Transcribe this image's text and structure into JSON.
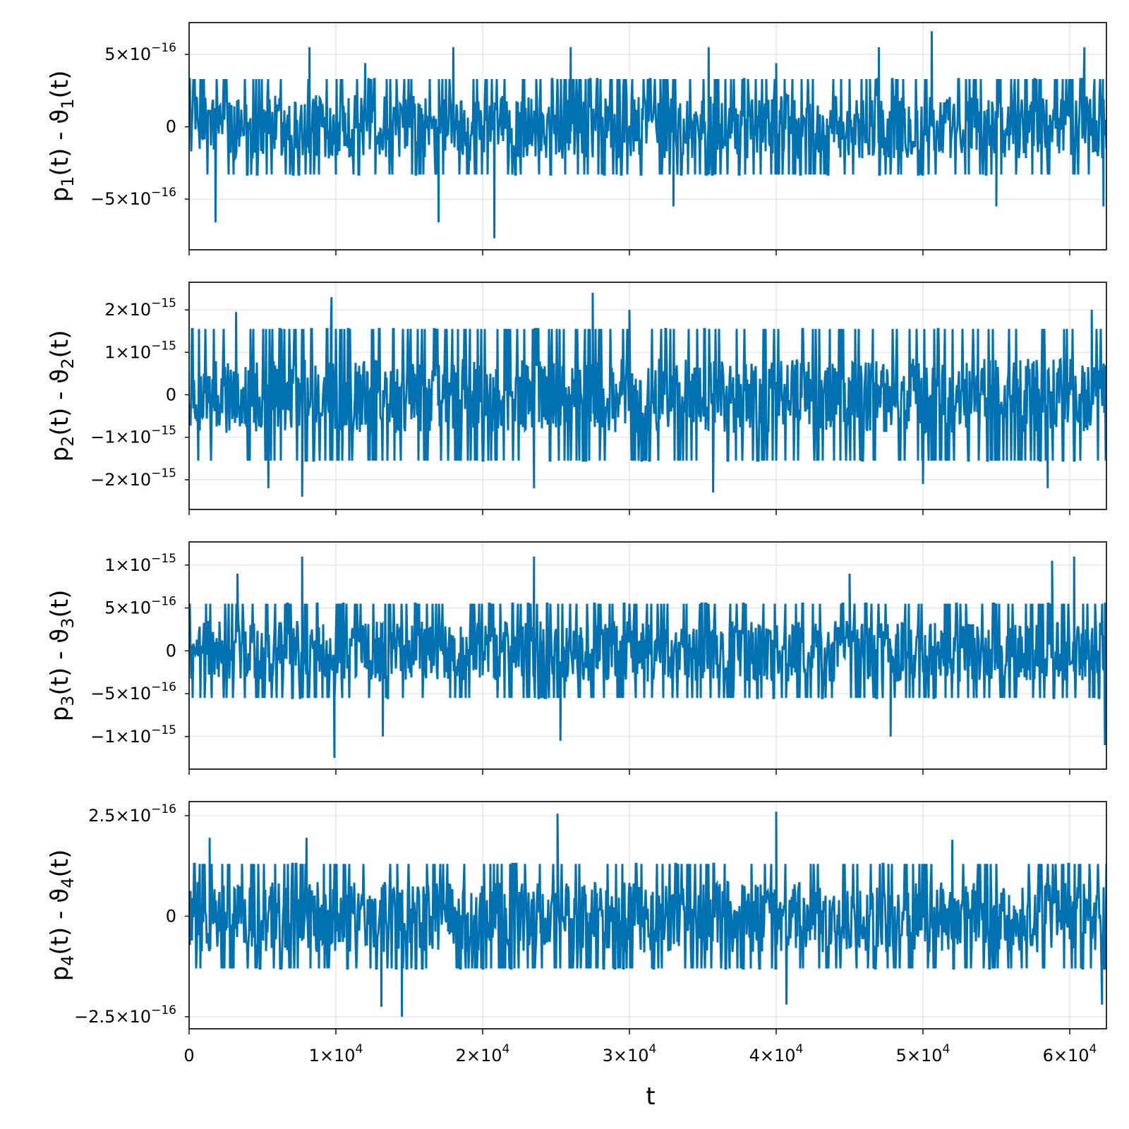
{
  "chart_data": {
    "type": "line",
    "shared_x": {
      "label": "t",
      "range": [
        0,
        62500
      ],
      "ticks": [
        {
          "value": 0,
          "mant": "0",
          "exp": ""
        },
        {
          "value": 10000,
          "mant": "1×10",
          "exp": "4"
        },
        {
          "value": 20000,
          "mant": "2×10",
          "exp": "4"
        },
        {
          "value": 30000,
          "mant": "3×10",
          "exp": "4"
        },
        {
          "value": 40000,
          "mant": "4×10",
          "exp": "4"
        },
        {
          "value": 50000,
          "mant": "5×10",
          "exp": "4"
        },
        {
          "value": 60000,
          "mant": "6×10",
          "exp": "4"
        }
      ]
    },
    "grid": true,
    "line_color": "#0072b2",
    "panels": [
      {
        "ylabel": {
          "p": "p",
          "sub1": "1",
          "mid": "(t) - ϑ",
          "sub2": "1",
          "end": "(t)"
        },
        "ylim": [
          -8.5e-16,
          7.2e-16
        ],
        "ticks": [
          {
            "value": 5e-16,
            "mant": "5×10",
            "exp": "−16"
          },
          {
            "value": 0,
            "mant": "0",
            "exp": ""
          },
          {
            "value": -5e-16,
            "mant": "−5×10",
            "exp": "−16"
          }
        ],
        "series": {
          "envelope": [
            3.3e-16,
            -3.3e-16
          ],
          "core": [
            2.2e-16,
            -2.2e-16
          ],
          "spikes": [
            {
              "t": 1800,
              "v": -6.6e-16
            },
            {
              "t": 8200,
              "v": 5.5e-16
            },
            {
              "t": 17000,
              "v": -6.6e-16
            },
            {
              "t": 18000,
              "v": 5.5e-16
            },
            {
              "t": 20800,
              "v": -7.7e-16
            },
            {
              "t": 26000,
              "v": 5.5e-16
            },
            {
              "t": 33000,
              "v": -5.5e-16
            },
            {
              "t": 35400,
              "v": 5.5e-16
            },
            {
              "t": 47000,
              "v": 5.5e-16
            },
            {
              "t": 50600,
              "v": 6.6e-16
            },
            {
              "t": 55000,
              "v": -5.5e-16
            },
            {
              "t": 61000,
              "v": 5.5e-16
            },
            {
              "t": 62300,
              "v": -5.5e-16
            },
            {
              "t": 12000,
              "v": 4.4e-16
            },
            {
              "t": 40000,
              "v": 4.4e-16
            }
          ]
        }
      },
      {
        "ylabel": {
          "p": "p",
          "sub1": "2",
          "mid": "(t) - ϑ",
          "sub2": "2",
          "end": "(t)"
        },
        "ylim": [
          -2.7e-15,
          2.65e-15
        ],
        "ticks": [
          {
            "value": 2e-15,
            "mant": "2×10",
            "exp": "−15"
          },
          {
            "value": 1e-15,
            "mant": "1×10",
            "exp": "−15"
          },
          {
            "value": 0,
            "mant": "0",
            "exp": ""
          },
          {
            "value": -1e-15,
            "mant": "−1×10",
            "exp": "−15"
          },
          {
            "value": -2e-15,
            "mant": "−2×10",
            "exp": "−15"
          }
        ],
        "series": {
          "envelope": [
            1.55e-15,
            -1.55e-15
          ],
          "core": [
            8.5e-16,
            -9e-16
          ],
          "spikes": [
            {
              "t": 7700,
              "v": -2.4e-15
            },
            {
              "t": 9700,
              "v": 2.3e-15
            },
            {
              "t": 23500,
              "v": -2.2e-15
            },
            {
              "t": 27500,
              "v": 2.4e-15
            },
            {
              "t": 35700,
              "v": -2.3e-15
            },
            {
              "t": 5400,
              "v": -2.2e-15
            },
            {
              "t": 50000,
              "v": -2.1e-15
            },
            {
              "t": 58500,
              "v": -2.2e-15
            },
            {
              "t": 61500,
              "v": 2e-15
            },
            {
              "t": 3200,
              "v": 1.95e-15
            },
            {
              "t": 30000,
              "v": 2e-15
            }
          ]
        }
      },
      {
        "ylabel": {
          "p": "p",
          "sub1": "3",
          "mid": "(t) - ϑ",
          "sub2": "3",
          "end": "(t)"
        },
        "ylim": [
          -1.38e-15,
          1.27e-15
        ],
        "ticks": [
          {
            "value": 1e-15,
            "mant": "1×10",
            "exp": "−15"
          },
          {
            "value": 5e-16,
            "mant": "5×10",
            "exp": "−16"
          },
          {
            "value": 0,
            "mant": "0",
            "exp": ""
          },
          {
            "value": -5e-16,
            "mant": "−5×10",
            "exp": "−16"
          },
          {
            "value": -1e-15,
            "mant": "−1×10",
            "exp": "−15"
          }
        ],
        "series": {
          "envelope": [
            5.5e-16,
            -5.5e-16
          ],
          "core": [
            3.5e-16,
            -3.6e-16
          ],
          "spikes": [
            {
              "t": 7700,
              "v": 1.1e-15
            },
            {
              "t": 9900,
              "v": -1.25e-15
            },
            {
              "t": 13200,
              "v": -1e-15
            },
            {
              "t": 23500,
              "v": 1.1e-15
            },
            {
              "t": 25300,
              "v": -1.05e-15
            },
            {
              "t": 47800,
              "v": -1e-15
            },
            {
              "t": 58800,
              "v": 1.05e-15
            },
            {
              "t": 60300,
              "v": 1.1e-15
            },
            {
              "t": 62400,
              "v": -1.1e-15
            },
            {
              "t": 3300,
              "v": 9e-16
            },
            {
              "t": 45000,
              "v": 9e-16
            }
          ]
        }
      },
      {
        "ylabel": {
          "p": "p",
          "sub1": "4",
          "mid": "(t) - ϑ",
          "sub2": "4",
          "end": "(t)"
        },
        "ylim": [
          -2.8e-16,
          2.85e-16
        ],
        "ticks": [
          {
            "value": 2.5e-16,
            "mant": "2.5×10",
            "exp": "−16"
          },
          {
            "value": 0,
            "mant": "0",
            "exp": ""
          },
          {
            "value": -2.5e-16,
            "mant": "−2.5×10",
            "exp": "−16"
          }
        ],
        "series": {
          "envelope": [
            1.3e-16,
            -1.3e-16
          ],
          "core": [
            8.5e-17,
            -9e-17
          ],
          "spikes": [
            {
              "t": 1400,
              "v": 1.95e-16
            },
            {
              "t": 13100,
              "v": -2.25e-16
            },
            {
              "t": 14500,
              "v": -2.5e-16
            },
            {
              "t": 25100,
              "v": 2.55e-16
            },
            {
              "t": 40000,
              "v": 2.6e-16
            },
            {
              "t": 40700,
              "v": -2.2e-16
            },
            {
              "t": 62200,
              "v": -2.2e-16
            },
            {
              "t": 8000,
              "v": 1.95e-16
            },
            {
              "t": 52000,
              "v": 1.9e-16
            }
          ]
        }
      }
    ]
  }
}
